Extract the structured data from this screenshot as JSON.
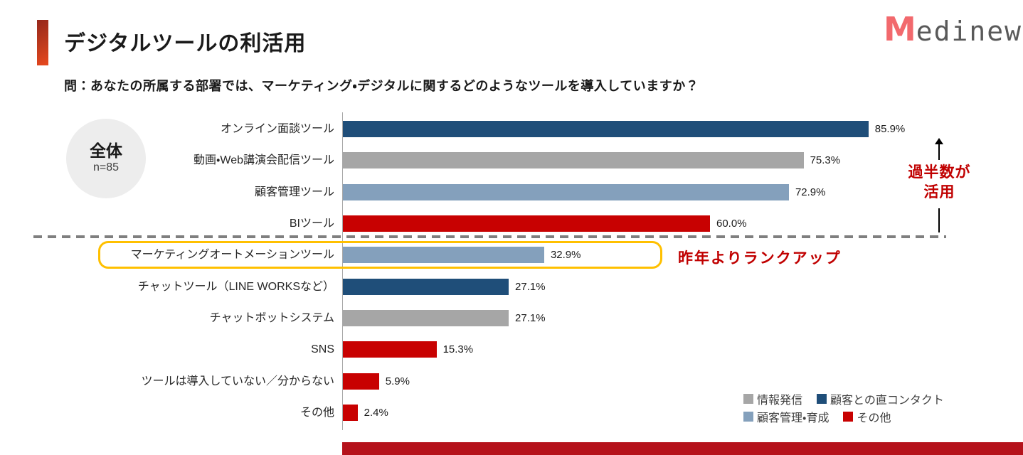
{
  "header": {
    "title": "デジタルツールの利活用"
  },
  "logo": {
    "mark": "M",
    "name": "edinew"
  },
  "question": "問：あなたの所属する部署では、マーケティング・デジタルに関するどのようなツールを導入していますか？",
  "badge": {
    "label": "全体",
    "count": "n=85"
  },
  "chart_data": {
    "type": "bar",
    "orientation": "horizontal",
    "xlim": [
      0,
      100
    ],
    "grid": false,
    "categories": [
      "オンライン面談ツール",
      "動画・Web講演会配信ツール",
      "顧客管理ツール",
      "BIツール",
      "マーケティングオートメーションツール",
      "チャットツール（LINE WORKSなど）",
      "チャットボットシステム",
      "SNS",
      "ツールは導入していない／分からない",
      "その他"
    ],
    "values": [
      85.9,
      75.3,
      72.9,
      60.0,
      32.9,
      27.1,
      27.1,
      15.3,
      5.9,
      2.4
    ],
    "value_labels": [
      "85.9%",
      "75.3%",
      "72.9%",
      "60.0%",
      "32.9%",
      "27.1%",
      "27.1%",
      "15.3%",
      "5.9%",
      "2.4%"
    ],
    "bar_categories": [
      "顧客との直コンタクト",
      "情報発信",
      "顧客管理・育成",
      "その他",
      "顧客管理・育成",
      "顧客との直コンタクト",
      "情報発信",
      "その他",
      "その他",
      "その他"
    ],
    "bar_colors": [
      "#1f4e79",
      "#a6a6a6",
      "#84a0bc",
      "#c80101",
      "#84a0bc",
      "#1f4e79",
      "#a6a6a6",
      "#c80101",
      "#c80101",
      "#c80101"
    ],
    "highlight_index": 4,
    "legend_position": "bottom-right",
    "legend": [
      {
        "label": "情報発信",
        "color": "#a6a6a6"
      },
      {
        "label": "顧客との直コンタクト",
        "color": "#1f4e79"
      },
      {
        "label": "顧客管理・育成",
        "color": "#84a0bc"
      },
      {
        "label": "その他",
        "color": "#c80101"
      }
    ]
  },
  "annotations": {
    "majority_line1": "過半数が",
    "majority_line2": "活用",
    "rankup": "昨年よりランクアップ"
  },
  "colors": {
    "accent_gradient_start": "#96281b",
    "accent_gradient_end": "#e8491e",
    "annotation_red": "#c00000",
    "highlight_orange": "#ffc000",
    "dashed_line_gray": "#7f7f7f",
    "footer_red": "#b5121b",
    "logo_coral": "#f2696d",
    "logo_gray": "#595959"
  }
}
